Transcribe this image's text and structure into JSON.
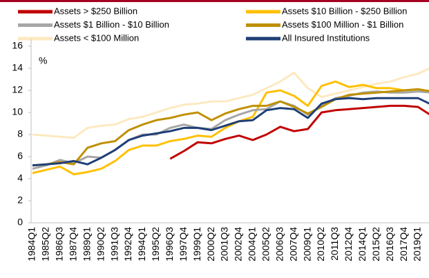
{
  "chart_data": {
    "type": "line",
    "y_label": "%",
    "categories": [
      "1984Q1",
      "1985Q2",
      "1986Q3",
      "1987Q4",
      "1989Q1",
      "1990Q2",
      "1991Q3",
      "1992Q4",
      "1994Q1",
      "1995Q2",
      "1996Q3",
      "1997Q4",
      "1999Q1",
      "2000Q2",
      "2001Q3",
      "2002Q4",
      "2004Q1",
      "2005Q2",
      "2006Q3",
      "2007Q4",
      "2009Q1",
      "2010Q2",
      "2011Q3",
      "2012Q4",
      "2014Q1",
      "2015Q2",
      "2016Q3",
      "2017Q4",
      "2019Q1",
      null
    ],
    "series": [
      {
        "name": "Assets > $250 Billion",
        "color": "#c00000",
        "values": [
          null,
          null,
          null,
          null,
          null,
          null,
          null,
          null,
          null,
          null,
          5.8,
          6.5,
          7.3,
          7.2,
          7.6,
          7.9,
          7.5,
          8.0,
          8.7,
          8.3,
          8.5,
          10.0,
          10.2,
          10.3,
          10.4,
          10.5,
          10.6,
          10.6,
          10.5,
          9.7
        ]
      },
      {
        "name": "Assets $10 Billion - $250 Billion",
        "color": "#ffc000",
        "values": [
          4.5,
          4.8,
          5.1,
          4.4,
          4.6,
          4.9,
          5.6,
          6.6,
          7.0,
          7.0,
          7.4,
          7.6,
          7.9,
          7.8,
          8.6,
          9.2,
          9.6,
          11.8,
          12.0,
          11.5,
          10.6,
          12.4,
          12.8,
          12.3,
          12.5,
          12.2,
          12.2,
          12.0,
          12.1,
          11.9
        ]
      },
      {
        "name": "Assets $1 Billion - $10 Billion",
        "color": "#a6a6a6",
        "values": [
          4.9,
          5.2,
          5.7,
          5.4,
          6.0,
          5.9,
          6.6,
          7.5,
          8.0,
          8.0,
          8.6,
          8.9,
          8.6,
          8.5,
          9.3,
          9.8,
          10.2,
          10.3,
          11.0,
          10.6,
          9.8,
          10.6,
          11.3,
          11.5,
          11.8,
          11.9,
          11.8,
          11.8,
          11.9,
          11.8
        ]
      },
      {
        "name": "Assets $100 Million - $1 Billion",
        "color": "#bf9000",
        "values": [
          5.2,
          5.3,
          5.5,
          5.3,
          6.8,
          7.2,
          7.4,
          8.4,
          8.9,
          9.3,
          9.5,
          9.8,
          10.0,
          9.3,
          9.9,
          10.3,
          10.6,
          10.6,
          11.0,
          10.5,
          9.9,
          10.5,
          11.2,
          11.6,
          11.7,
          11.8,
          11.9,
          12.0,
          12.1,
          11.9
        ]
      },
      {
        "name": "Assets < $100 Million",
        "color": "#fde9c0",
        "values": [
          8.0,
          7.9,
          7.8,
          7.7,
          8.6,
          8.8,
          8.9,
          9.4,
          9.6,
          10.0,
          10.4,
          10.7,
          10.8,
          11.0,
          11.0,
          11.3,
          11.6,
          12.2,
          12.8,
          13.6,
          12.2,
          11.4,
          11.7,
          12.0,
          12.3,
          12.6,
          12.8,
          13.2,
          13.5,
          14.1
        ]
      },
      {
        "name": "All Insured Institutions",
        "color": "#1f3f77",
        "values": [
          5.2,
          5.3,
          5.4,
          5.6,
          5.3,
          5.9,
          6.6,
          7.5,
          7.9,
          8.1,
          8.3,
          8.6,
          8.6,
          8.4,
          8.8,
          9.2,
          9.3,
          10.2,
          10.4,
          10.3,
          9.5,
          10.8,
          11.2,
          11.3,
          11.2,
          11.3,
          11.3,
          11.3,
          11.3,
          10.7
        ]
      }
    ],
    "ylim": [
      0,
      16
    ],
    "yticks": [
      0,
      2,
      4,
      6,
      8,
      10,
      12,
      14,
      16
    ],
    "grid": false,
    "legend": "top"
  }
}
